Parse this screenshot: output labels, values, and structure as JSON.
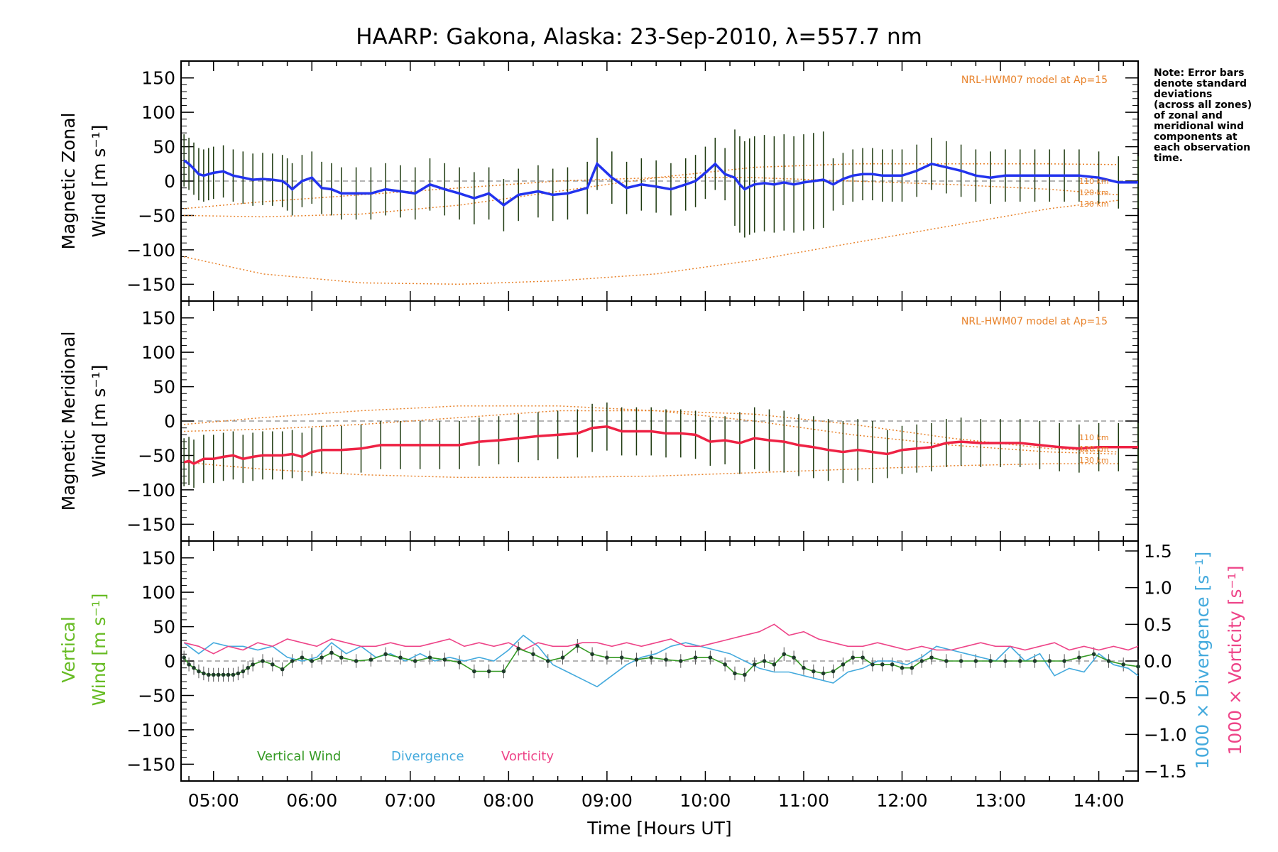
{
  "title": "HAARP: Gakona,  Alaska: 23-Sep-2010, λ=557.7 nm",
  "note": [
    "Note: Error bars",
    "denote standard",
    "deviations",
    "(across all zones)",
    "of zonal and",
    "meridional wind",
    "components at",
    "each observation",
    "time."
  ],
  "model_label": "NRL-HWM07 model at Ap=15",
  "altitude_labels": [
    "110 km",
    "120 km",
    "130 km"
  ],
  "xlabel": "Time [Hours UT]",
  "x_ticks": [
    "05:00",
    "06:00",
    "07:00",
    "08:00",
    "09:00",
    "10:00",
    "11:00",
    "12:00",
    "13:00",
    "14:00"
  ],
  "y_ticks": [
    "150",
    "100",
    "50",
    "0",
    "−50",
    "−100",
    "−150"
  ],
  "y2_ticks": [
    "1.5",
    "1.0",
    "0.5",
    "0.0",
    "−0.5",
    "−1.0",
    "−1.5"
  ],
  "panels": {
    "zonal": {
      "ylabel_top": "Magnetic Zonal",
      "ylabel_bottom": "Wind [m s⁻¹]"
    },
    "meridional": {
      "ylabel_top": "Magnetic Meridional",
      "ylabel_bottom": "Wind [m s⁻¹]"
    },
    "vertical": {
      "ylabel_top": "Vertical",
      "ylabel_bottom": "Wind [m s⁻¹]",
      "y2_label_div": "1000 × Divergence [s⁻¹]",
      "y2_label_vort": "1000 × Vorticity [s⁻¹]"
    }
  },
  "legend": {
    "vertical": "Vertical Wind",
    "divergence": "Divergence",
    "vorticity": "Vorticity"
  },
  "colors": {
    "zonal": "#2233ee",
    "meridional": "#ee2244",
    "vertical": "#339922",
    "divergence": "#44aadd",
    "vorticity": "#ee4488",
    "model": "#e8822a",
    "errorbar": "#1e3a10"
  },
  "chart_data": {
    "type": "line",
    "title": "HAARP: Gakona,  Alaska: 23-Sep-2010, λ=557.7 nm",
    "xlabel": "Time [Hours UT]",
    "xlim": [
      4.67,
      14.4
    ],
    "ylim": [
      -160,
      160
    ],
    "y2lim": [
      -1.5,
      1.5
    ],
    "zonal": {
      "x": [
        4.7,
        4.75,
        4.8,
        4.85,
        4.9,
        4.95,
        5.0,
        5.1,
        5.2,
        5.3,
        5.4,
        5.5,
        5.6,
        5.7,
        5.75,
        5.8,
        5.9,
        6.0,
        6.1,
        6.2,
        6.3,
        6.45,
        6.6,
        6.75,
        6.9,
        7.05,
        7.2,
        7.35,
        7.5,
        7.65,
        7.8,
        7.95,
        8.1,
        8.3,
        8.45,
        8.6,
        8.8,
        8.9,
        9.05,
        9.2,
        9.35,
        9.5,
        9.65,
        9.8,
        9.9,
        10.0,
        10.1,
        10.2,
        10.3,
        10.35,
        10.4,
        10.45,
        10.5,
        10.6,
        10.7,
        10.8,
        10.9,
        11.0,
        11.1,
        11.2,
        11.3,
        11.4,
        11.5,
        11.6,
        11.7,
        11.8,
        11.9,
        12.0,
        12.15,
        12.3,
        12.45,
        12.6,
        12.75,
        12.9,
        13.05,
        13.2,
        13.35,
        13.5,
        13.65,
        13.8,
        14.0,
        14.2,
        14.4
      ],
      "values": [
        30,
        25,
        18,
        10,
        8,
        10,
        12,
        14,
        8,
        5,
        2,
        3,
        2,
        0,
        -5,
        -12,
        0,
        5,
        -10,
        -12,
        -18,
        -18,
        -18,
        -12,
        -15,
        -18,
        -5,
        -12,
        -18,
        -25,
        -18,
        -35,
        -20,
        -15,
        -20,
        -18,
        -10,
        25,
        5,
        -10,
        -5,
        -8,
        -12,
        -5,
        0,
        12,
        25,
        10,
        5,
        -5,
        -12,
        -8,
        -5,
        -3,
        -5,
        -2,
        -5,
        -2,
        0,
        2,
        -5,
        3,
        8,
        10,
        10,
        8,
        8,
        8,
        15,
        25,
        20,
        15,
        8,
        5,
        8,
        8,
        8,
        8,
        8,
        8,
        5,
        -2,
        -2
      ]
    },
    "meridional": {
      "x": [
        4.7,
        4.75,
        4.8,
        4.9,
        5.0,
        5.1,
        5.2,
        5.3,
        5.4,
        5.5,
        5.6,
        5.7,
        5.8,
        5.9,
        6.0,
        6.1,
        6.3,
        6.5,
        6.7,
        6.9,
        7.1,
        7.3,
        7.5,
        7.7,
        7.9,
        8.1,
        8.3,
        8.5,
        8.7,
        8.85,
        9.0,
        9.15,
        9.3,
        9.45,
        9.6,
        9.75,
        9.9,
        10.05,
        10.2,
        10.35,
        10.5,
        10.65,
        10.8,
        10.95,
        11.1,
        11.25,
        11.4,
        11.55,
        11.7,
        11.85,
        12.0,
        12.15,
        12.3,
        12.45,
        12.6,
        12.8,
        13.0,
        13.2,
        13.4,
        13.6,
        13.8,
        14.0,
        14.2,
        14.4
      ],
      "values": [
        -60,
        -58,
        -62,
        -55,
        -55,
        -52,
        -50,
        -55,
        -52,
        -50,
        -50,
        -50,
        -48,
        -52,
        -45,
        -42,
        -42,
        -40,
        -35,
        -35,
        -35,
        -35,
        -35,
        -30,
        -28,
        -25,
        -22,
        -20,
        -18,
        -10,
        -8,
        -15,
        -15,
        -15,
        -18,
        -18,
        -20,
        -30,
        -28,
        -32,
        -25,
        -28,
        -30,
        -35,
        -38,
        -42,
        -45,
        -42,
        -45,
        -48,
        -42,
        -40,
        -38,
        -32,
        -30,
        -32,
        -32,
        -32,
        -35,
        -38,
        -40,
        -38,
        -38,
        -38
      ]
    },
    "vertical": {
      "x": [
        4.7,
        4.75,
        4.8,
        4.85,
        4.9,
        4.95,
        5.0,
        5.05,
        5.1,
        5.15,
        5.2,
        5.25,
        5.3,
        5.35,
        5.4,
        5.5,
        5.6,
        5.7,
        5.8,
        5.9,
        6.0,
        6.1,
        6.2,
        6.3,
        6.45,
        6.6,
        6.75,
        6.9,
        7.05,
        7.2,
        7.35,
        7.5,
        7.65,
        7.8,
        7.95,
        8.1,
        8.25,
        8.4,
        8.55,
        8.7,
        8.85,
        9.0,
        9.15,
        9.3,
        9.45,
        9.6,
        9.75,
        9.9,
        10.05,
        10.2,
        10.3,
        10.4,
        10.5,
        10.6,
        10.7,
        10.8,
        10.9,
        11.0,
        11.1,
        11.2,
        11.3,
        11.4,
        11.5,
        11.6,
        11.7,
        11.8,
        11.9,
        12.0,
        12.1,
        12.2,
        12.3,
        12.45,
        12.6,
        12.75,
        12.9,
        13.05,
        13.2,
        13.35,
        13.5,
        13.65,
        13.8,
        13.95,
        14.1,
        14.25,
        14.4
      ],
      "values": [
        5,
        -5,
        -10,
        -15,
        -18,
        -20,
        -20,
        -20,
        -20,
        -20,
        -20,
        -18,
        -15,
        -10,
        -5,
        0,
        -5,
        -12,
        0,
        5,
        0,
        5,
        12,
        5,
        0,
        2,
        10,
        5,
        0,
        5,
        2,
        -2,
        -15,
        -15,
        -15,
        18,
        10,
        0,
        5,
        22,
        10,
        5,
        5,
        2,
        5,
        2,
        0,
        5,
        5,
        -5,
        -18,
        -20,
        -5,
        0,
        -5,
        10,
        5,
        -10,
        -15,
        -18,
        -15,
        -5,
        5,
        5,
        -5,
        -5,
        -5,
        -10,
        -10,
        0,
        5,
        0,
        0,
        0,
        0,
        0,
        0,
        0,
        0,
        0,
        5,
        10,
        0,
        -5,
        -8
      ]
    },
    "divergence": {
      "x": [
        4.7,
        4.85,
        5.0,
        5.15,
        5.3,
        5.45,
        5.6,
        5.75,
        5.9,
        6.05,
        6.2,
        6.35,
        6.5,
        6.65,
        6.8,
        6.95,
        7.1,
        7.25,
        7.4,
        7.55,
        7.7,
        7.85,
        8.0,
        8.15,
        8.3,
        8.45,
        8.6,
        8.75,
        8.9,
        9.05,
        9.2,
        9.35,
        9.5,
        9.65,
        9.8,
        9.95,
        10.1,
        10.25,
        10.4,
        10.55,
        10.7,
        10.85,
        11.0,
        11.15,
        11.3,
        11.45,
        11.6,
        11.75,
        11.9,
        12.05,
        12.2,
        12.35,
        12.5,
        12.65,
        12.8,
        12.95,
        13.1,
        13.25,
        13.4,
        13.55,
        13.7,
        13.85,
        14.0,
        14.15,
        14.3,
        14.4
      ],
      "values": [
        0.25,
        0.1,
        0.25,
        0.2,
        0.2,
        0.15,
        0.2,
        0.05,
        0.0,
        0.05,
        0.25,
        0.1,
        0.2,
        0.05,
        0.1,
        0.0,
        0.1,
        0.0,
        0.05,
        0.0,
        0.05,
        0.0,
        0.15,
        0.35,
        0.2,
        -0.05,
        -0.15,
        -0.25,
        -0.35,
        -0.2,
        -0.05,
        0.05,
        0.1,
        0.2,
        0.25,
        0.2,
        0.15,
        0.1,
        0.0,
        -0.1,
        -0.15,
        -0.15,
        -0.2,
        -0.25,
        -0.3,
        -0.15,
        -0.1,
        0.0,
        0.0,
        -0.05,
        0.05,
        0.2,
        0.15,
        0.1,
        0.05,
        0.0,
        0.2,
        0.0,
        0.1,
        -0.2,
        -0.1,
        -0.15,
        0.1,
        -0.05,
        -0.1,
        -0.2
      ]
    },
    "vorticity": {
      "x": [
        4.7,
        4.85,
        5.0,
        5.15,
        5.3,
        5.45,
        5.6,
        5.75,
        5.9,
        6.05,
        6.2,
        6.35,
        6.5,
        6.65,
        6.8,
        6.95,
        7.1,
        7.25,
        7.4,
        7.55,
        7.7,
        7.85,
        8.0,
        8.15,
        8.3,
        8.45,
        8.6,
        8.75,
        8.9,
        9.05,
        9.2,
        9.35,
        9.5,
        9.65,
        9.8,
        9.95,
        10.1,
        10.25,
        10.4,
        10.55,
        10.7,
        10.85,
        11.0,
        11.15,
        11.3,
        11.45,
        11.6,
        11.75,
        11.9,
        12.05,
        12.2,
        12.35,
        12.5,
        12.65,
        12.8,
        12.95,
        13.1,
        13.25,
        13.4,
        13.55,
        13.7,
        13.85,
        14.0,
        14.15,
        14.3,
        14.4
      ],
      "values": [
        0.25,
        0.2,
        0.1,
        0.2,
        0.15,
        0.25,
        0.2,
        0.3,
        0.25,
        0.2,
        0.3,
        0.25,
        0.2,
        0.2,
        0.25,
        0.2,
        0.2,
        0.25,
        0.3,
        0.2,
        0.25,
        0.2,
        0.25,
        0.15,
        0.25,
        0.2,
        0.2,
        0.25,
        0.25,
        0.2,
        0.25,
        0.2,
        0.25,
        0.3,
        0.2,
        0.2,
        0.25,
        0.3,
        0.35,
        0.4,
        0.5,
        0.35,
        0.4,
        0.3,
        0.25,
        0.2,
        0.2,
        0.25,
        0.2,
        0.15,
        0.2,
        0.15,
        0.15,
        0.2,
        0.25,
        0.2,
        0.2,
        0.15,
        0.2,
        0.25,
        0.15,
        0.2,
        0.15,
        0.2,
        0.15,
        0.2
      ]
    },
    "model_zonal": [
      {
        "label": "110 km",
        "x": [
          4.7,
          5.5,
          6.5,
          7.5,
          8.5,
          9.5,
          10.5,
          11.5,
          12.5,
          13.5,
          14.2
        ],
        "values": [
          -50,
          -52,
          -48,
          -35,
          -15,
          5,
          20,
          25,
          25,
          25,
          24
        ]
      },
      {
        "label": "120 km",
        "x": [
          4.7,
          5.5,
          6.5,
          7.5,
          8.5,
          9.5,
          10.5,
          11.5,
          12.5,
          13.5,
          14.2
        ],
        "values": [
          -40,
          -30,
          -20,
          -10,
          0,
          5,
          5,
          0,
          -5,
          -12,
          -20
        ]
      },
      {
        "label": "130 km",
        "x": [
          4.7,
          5.5,
          6.5,
          7.5,
          8.5,
          9.5,
          10.5,
          11.5,
          12.5,
          13.5,
          14.2
        ],
        "values": [
          -110,
          -135,
          -148,
          -150,
          -145,
          -135,
          -115,
          -90,
          -65,
          -40,
          -28
        ]
      }
    ],
    "model_meridional": [
      {
        "label": "110 km",
        "x": [
          4.7,
          5.5,
          6.5,
          7.5,
          8.5,
          9.5,
          10.5,
          11.5,
          12.5,
          13.5,
          14.2
        ],
        "values": [
          -15,
          -12,
          -5,
          5,
          15,
          15,
          10,
          -5,
          -25,
          -40,
          -45
        ]
      },
      {
        "label": "120 km",
        "x": [
          4.7,
          5.5,
          6.5,
          7.5,
          8.5,
          9.5,
          10.5,
          11.5,
          12.5,
          13.5,
          14.2
        ],
        "values": [
          -5,
          5,
          15,
          22,
          22,
          15,
          0,
          -20,
          -35,
          -45,
          -48
        ]
      },
      {
        "label": "130 km",
        "x": [
          4.7,
          5.5,
          6.5,
          7.5,
          8.5,
          9.5,
          10.5,
          11.5,
          12.5,
          13.5,
          14.2
        ],
        "values": [
          -60,
          -70,
          -78,
          -82,
          -82,
          -80,
          -75,
          -70,
          -65,
          -62,
          -62
        ]
      }
    ]
  }
}
